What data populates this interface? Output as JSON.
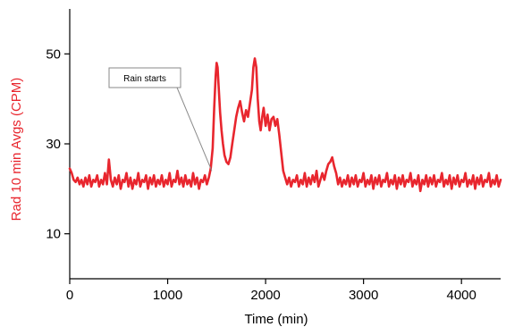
{
  "chart_data": {
    "type": "line",
    "title": "",
    "xlabel": "Time (min)",
    "ylabel": "Rad 10 min Avgs (CPM)",
    "xlim": [
      0,
      4400
    ],
    "ylim": [
      0,
      60
    ],
    "x_ticks": [
      0,
      1000,
      2000,
      3000,
      4000
    ],
    "y_ticks": [
      10,
      30,
      50
    ],
    "grid": false,
    "legend": "none",
    "colors": {
      "series": "#e8262e",
      "ylabel": "#e8262e",
      "axis": "#000000",
      "annotation_border": "#8a8a8a"
    },
    "annotations": [
      {
        "text": "Rain starts",
        "x": 1450,
        "y": 24
      }
    ],
    "series": [
      {
        "color": "#e8262e",
        "points": [
          [
            0,
            24.5
          ],
          [
            20,
            23.5
          ],
          [
            40,
            22
          ],
          [
            60,
            21.5
          ],
          [
            80,
            22.5
          ],
          [
            100,
            21
          ],
          [
            120,
            22
          ],
          [
            140,
            20.5
          ],
          [
            160,
            22.5
          ],
          [
            180,
            21
          ],
          [
            200,
            23
          ],
          [
            220,
            20.5
          ],
          [
            240,
            22
          ],
          [
            260,
            21.5
          ],
          [
            280,
            23
          ],
          [
            300,
            20.5
          ],
          [
            320,
            22
          ],
          [
            340,
            21
          ],
          [
            360,
            23.5
          ],
          [
            380,
            21
          ],
          [
            400,
            26.5
          ],
          [
            420,
            22
          ],
          [
            440,
            20.5
          ],
          [
            460,
            22.5
          ],
          [
            480,
            21
          ],
          [
            500,
            23
          ],
          [
            520,
            20
          ],
          [
            540,
            22
          ],
          [
            560,
            21.5
          ],
          [
            580,
            23.5
          ],
          [
            600,
            20.5
          ],
          [
            620,
            22.5
          ],
          [
            640,
            20
          ],
          [
            660,
            22
          ],
          [
            680,
            21
          ],
          [
            700,
            23.5
          ],
          [
            720,
            20.5
          ],
          [
            740,
            22
          ],
          [
            760,
            21.5
          ],
          [
            780,
            23
          ],
          [
            800,
            20
          ],
          [
            820,
            22.5
          ],
          [
            840,
            21
          ],
          [
            860,
            23
          ],
          [
            880,
            20.5
          ],
          [
            900,
            22
          ],
          [
            920,
            21
          ],
          [
            940,
            23
          ],
          [
            960,
            20.5
          ],
          [
            980,
            22
          ],
          [
            1000,
            21
          ],
          [
            1020,
            23.5
          ],
          [
            1040,
            20.5
          ],
          [
            1060,
            22
          ],
          [
            1080,
            21.5
          ],
          [
            1100,
            24
          ],
          [
            1120,
            21
          ],
          [
            1140,
            22.5
          ],
          [
            1160,
            20.5
          ],
          [
            1180,
            23
          ],
          [
            1200,
            21
          ],
          [
            1220,
            22
          ],
          [
            1240,
            20.5
          ],
          [
            1260,
            23.5
          ],
          [
            1280,
            21
          ],
          [
            1300,
            22.5
          ],
          [
            1320,
            20
          ],
          [
            1340,
            22
          ],
          [
            1360,
            21.5
          ],
          [
            1380,
            23
          ],
          [
            1400,
            21
          ],
          [
            1420,
            22.5
          ],
          [
            1440,
            24.5
          ],
          [
            1460,
            29
          ],
          [
            1475,
            38
          ],
          [
            1490,
            45
          ],
          [
            1500,
            48
          ],
          [
            1510,
            47
          ],
          [
            1520,
            43
          ],
          [
            1535,
            37
          ],
          [
            1550,
            33
          ],
          [
            1565,
            30
          ],
          [
            1580,
            27.5
          ],
          [
            1600,
            26
          ],
          [
            1620,
            25.5
          ],
          [
            1640,
            27
          ],
          [
            1660,
            30
          ],
          [
            1680,
            33
          ],
          [
            1700,
            36
          ],
          [
            1720,
            38
          ],
          [
            1740,
            39.5
          ],
          [
            1760,
            37
          ],
          [
            1780,
            35
          ],
          [
            1800,
            37.5
          ],
          [
            1820,
            36
          ],
          [
            1840,
            39
          ],
          [
            1860,
            42
          ],
          [
            1875,
            47
          ],
          [
            1890,
            49
          ],
          [
            1905,
            47
          ],
          [
            1920,
            40
          ],
          [
            1935,
            35
          ],
          [
            1950,
            33
          ],
          [
            1965,
            36
          ],
          [
            1980,
            38
          ],
          [
            2000,
            34
          ],
          [
            2020,
            36.5
          ],
          [
            2040,
            33
          ],
          [
            2060,
            35.5
          ],
          [
            2080,
            36
          ],
          [
            2100,
            34
          ],
          [
            2120,
            35.5
          ],
          [
            2140,
            32
          ],
          [
            2160,
            28
          ],
          [
            2180,
            24
          ],
          [
            2200,
            22.5
          ],
          [
            2220,
            21
          ],
          [
            2240,
            22.5
          ],
          [
            2260,
            20.5
          ],
          [
            2280,
            22
          ],
          [
            2300,
            21.5
          ],
          [
            2320,
            23
          ],
          [
            2340,
            20.5
          ],
          [
            2360,
            22
          ],
          [
            2380,
            21
          ],
          [
            2400,
            23.5
          ],
          [
            2420,
            20.5
          ],
          [
            2440,
            22.5
          ],
          [
            2460,
            21
          ],
          [
            2480,
            23
          ],
          [
            2500,
            21.5
          ],
          [
            2520,
            24
          ],
          [
            2540,
            20.5
          ],
          [
            2560,
            22
          ],
          [
            2580,
            23.5
          ],
          [
            2600,
            22
          ],
          [
            2620,
            24
          ],
          [
            2640,
            25.5
          ],
          [
            2660,
            26
          ],
          [
            2680,
            27
          ],
          [
            2700,
            25
          ],
          [
            2720,
            23.5
          ],
          [
            2740,
            21
          ],
          [
            2760,
            22.5
          ],
          [
            2780,
            20.5
          ],
          [
            2800,
            22
          ],
          [
            2820,
            21
          ],
          [
            2840,
            23
          ],
          [
            2860,
            20.5
          ],
          [
            2880,
            22.5
          ],
          [
            2900,
            21
          ],
          [
            2920,
            23
          ],
          [
            2940,
            20.5
          ],
          [
            2960,
            22
          ],
          [
            2980,
            21.5
          ],
          [
            3000,
            23.5
          ],
          [
            3020,
            20.5
          ],
          [
            3040,
            22
          ],
          [
            3060,
            21
          ],
          [
            3080,
            23
          ],
          [
            3100,
            20
          ],
          [
            3120,
            22.5
          ],
          [
            3140,
            21
          ],
          [
            3160,
            23
          ],
          [
            3180,
            20.5
          ],
          [
            3200,
            22
          ],
          [
            3220,
            21.5
          ],
          [
            3240,
            23.5
          ],
          [
            3260,
            20.5
          ],
          [
            3280,
            22
          ],
          [
            3300,
            21
          ],
          [
            3320,
            23
          ],
          [
            3340,
            20
          ],
          [
            3360,
            22.5
          ],
          [
            3380,
            21
          ],
          [
            3400,
            23
          ],
          [
            3420,
            20.5
          ],
          [
            3440,
            22
          ],
          [
            3460,
            21.5
          ],
          [
            3480,
            23.5
          ],
          [
            3500,
            20.5
          ],
          [
            3520,
            22
          ],
          [
            3540,
            21
          ],
          [
            3560,
            23
          ],
          [
            3580,
            19.5
          ],
          [
            3600,
            22
          ],
          [
            3620,
            21
          ],
          [
            3640,
            23
          ],
          [
            3660,
            20.5
          ],
          [
            3680,
            22.5
          ],
          [
            3700,
            21
          ],
          [
            3720,
            23
          ],
          [
            3740,
            20.5
          ],
          [
            3760,
            22
          ],
          [
            3780,
            21.5
          ],
          [
            3800,
            23.5
          ],
          [
            3820,
            20.5
          ],
          [
            3840,
            22
          ],
          [
            3860,
            21
          ],
          [
            3880,
            23
          ],
          [
            3900,
            20
          ],
          [
            3920,
            22.5
          ],
          [
            3940,
            21
          ],
          [
            3960,
            23
          ],
          [
            3980,
            20.5
          ],
          [
            4000,
            22
          ],
          [
            4020,
            21.5
          ],
          [
            4040,
            23.5
          ],
          [
            4060,
            20.5
          ],
          [
            4080,
            22
          ],
          [
            4100,
            21
          ],
          [
            4120,
            23
          ],
          [
            4140,
            20
          ],
          [
            4160,
            22.5
          ],
          [
            4180,
            21
          ],
          [
            4200,
            23
          ],
          [
            4220,
            20.5
          ],
          [
            4240,
            22
          ],
          [
            4260,
            21.5
          ],
          [
            4280,
            23.5
          ],
          [
            4300,
            20.5
          ],
          [
            4320,
            22
          ],
          [
            4340,
            21
          ],
          [
            4360,
            23
          ],
          [
            4380,
            20.5
          ],
          [
            4400,
            22
          ]
        ]
      }
    ]
  }
}
